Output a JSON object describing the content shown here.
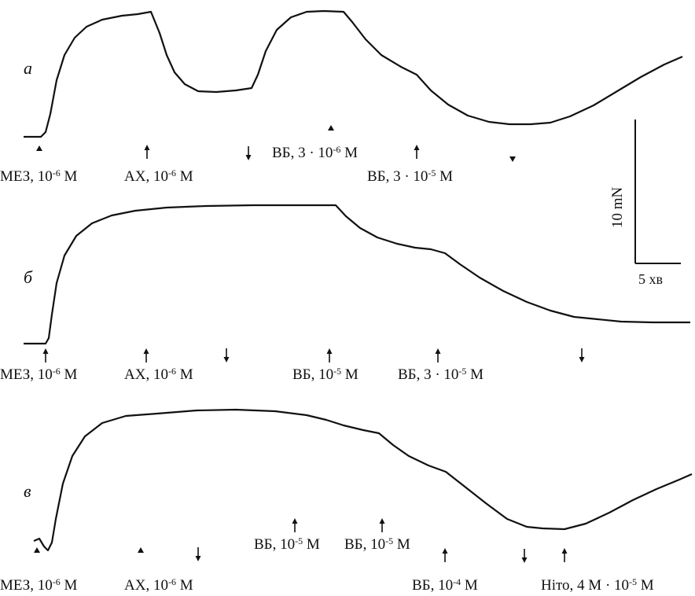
{
  "chart_data": {
    "type": "line",
    "title": "",
    "scale_bar": {
      "force": "10 mN",
      "time": "5 хв"
    },
    "panels": [
      {
        "label": "а",
        "annotations": [
          {
            "mark": "▲",
            "parts": [
              "МЕЗ, 10",
              "-6",
              " М"
            ]
          },
          {
            "mark": "↑",
            "parts": [
              "АХ, 10",
              "-6",
              " М"
            ]
          },
          {
            "mark": "↓"
          },
          {
            "mark": "▲",
            "parts": [
              "ВБ, 3 · 10",
              "-6",
              " М"
            ]
          },
          {
            "mark": "↑",
            "parts": [
              "ВБ, 3  · 10",
              "-5",
              " М"
            ]
          },
          {
            "mark": "▼"
          }
        ]
      },
      {
        "label": "б",
        "annotations": [
          {
            "mark": "↑",
            "parts": [
              "МЕЗ, 10",
              "-6",
              " М"
            ]
          },
          {
            "mark": "↑",
            "parts": [
              "АХ, 10",
              "-6",
              " М"
            ]
          },
          {
            "mark": "↓"
          },
          {
            "mark": "↑",
            "parts": [
              "ВБ, 10",
              "-5",
              " М"
            ]
          },
          {
            "mark": "↑",
            "parts": [
              "ВБ, 3  · 10",
              "-5",
              " М"
            ]
          },
          {
            "mark": "↓"
          }
        ]
      },
      {
        "label": "в",
        "annotations": [
          {
            "mark": "▲",
            "parts": [
              "МЕЗ, 10",
              "-6",
              " М"
            ]
          },
          {
            "mark": "▲",
            "parts": [
              "АХ, 10",
              "-6",
              " М"
            ]
          },
          {
            "mark": "↓"
          },
          {
            "mark": "↑",
            "parts": [
              "ВБ, 10",
              "-5",
              " М"
            ]
          },
          {
            "mark": "↑",
            "parts": [
              "ВБ, 10",
              "-5",
              " М"
            ]
          },
          {
            "mark": "↑",
            "parts": [
              "ВБ, 10",
              "-4",
              " М"
            ]
          },
          {
            "mark": "↓"
          },
          {
            "mark": "↑",
            "parts": [
              "Ніто, 4 М · 10",
              "-5",
              " М"
            ]
          }
        ]
      }
    ]
  }
}
